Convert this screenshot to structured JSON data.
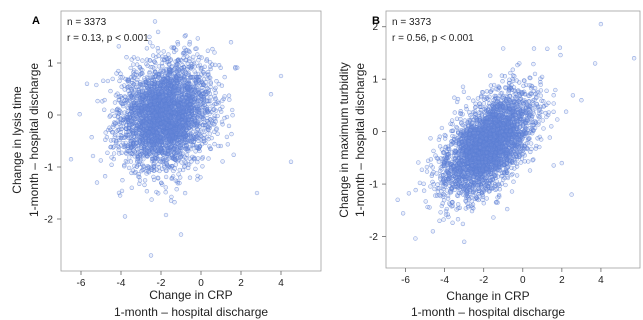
{
  "chart_data": [
    {
      "type": "scatter",
      "panel": "A",
      "annotations": [
        "n = 3373",
        "r = 0.13, p < 0.001"
      ],
      "n": 3373,
      "r": 0.13,
      "xlabel": "Change in CRP",
      "xlabel2": "1-month – hospital discharge",
      "ylabel": "Change in lysis time",
      "ylabel2": "1-month – hospital discharge",
      "xlim": [
        -7,
        6
      ],
      "ylim": [
        -3,
        2
      ],
      "xticks": [
        -6,
        -4,
        -2,
        0,
        2,
        4
      ],
      "yticks": [
        -2,
        -1,
        0,
        1
      ],
      "grid": false,
      "point_color": "#5b7fd4",
      "cluster": {
        "x_mean": -1.8,
        "x_sd": 1.15,
        "y_mean": 0.0,
        "y_sd": 0.5
      },
      "outliers": [
        {
          "x": -6.5,
          "y": -0.85
        },
        {
          "x": -3.8,
          "y": -1.95
        },
        {
          "x": -2.5,
          "y": -2.7
        },
        {
          "x": 4.0,
          "y": 0.75
        },
        {
          "x": 3.5,
          "y": 0.4
        },
        {
          "x": -2.3,
          "y": 1.8
        },
        {
          "x": 2.8,
          "y": -1.5
        },
        {
          "x": -5.7,
          "y": 0.6
        },
        {
          "x": 4.5,
          "y": -0.9
        },
        {
          "x": 1.5,
          "y": 1.4
        },
        {
          "x": -5.2,
          "y": -1.3
        },
        {
          "x": -1.0,
          "y": -2.3
        }
      ]
    },
    {
      "type": "scatter",
      "panel": "B",
      "annotations": [
        "n = 3373",
        "r = 0.56, p < 0.001"
      ],
      "n": 3373,
      "r": 0.56,
      "xlabel": "Change in CRP",
      "xlabel2": "1-month – hospital discharge",
      "ylabel": "Change in maximum turbidity",
      "ylabel2": "1-month – hospital discharge",
      "xlim": [
        -7,
        6
      ],
      "ylim": [
        -2.6,
        2.3
      ],
      "xticks": [
        -6,
        -4,
        -2,
        0,
        2,
        4
      ],
      "yticks": [
        -2,
        -1,
        0,
        1,
        2
      ],
      "grid": false,
      "point_color": "#5b7fd4",
      "cluster": {
        "x_mean": -1.8,
        "x_sd": 1.15,
        "y_mean": -0.25,
        "y_sd": 0.5
      },
      "outliers": [
        {
          "x": 4.0,
          "y": 2.05
        },
        {
          "x": 5.7,
          "y": 1.4
        },
        {
          "x": 3.7,
          "y": 1.3
        },
        {
          "x": -3.0,
          "y": -2.1
        },
        {
          "x": 2.0,
          "y": -0.6
        },
        {
          "x": -6.4,
          "y": -1.3
        },
        {
          "x": 1.9,
          "y": 1.6
        },
        {
          "x": 3.0,
          "y": 0.6
        },
        {
          "x": -4.6,
          "y": -1.9
        },
        {
          "x": 2.5,
          "y": -1.2
        }
      ]
    }
  ]
}
